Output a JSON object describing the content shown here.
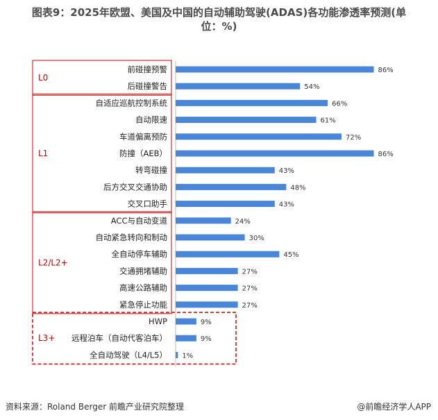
{
  "title_line1": "图表9：2025年欧盟、美国及中国的自动辅助驾驶(ADAS)各功能渗透率预测(单",
  "title_line2": "位：%)",
  "source": "资料来源：Roland Berger 前瞻产业研究院整理",
  "credit": "@前瞻经济学人APP",
  "colors": {
    "bar": "#4a86d8",
    "group_box": "#cc0000"
  },
  "chart_data": {
    "type": "bar",
    "orientation": "horizontal",
    "categories": [
      "前碰撞预警",
      "后碰撞警告",
      "自适应巡航控制系统",
      "自动限速",
      "车道偏离预防",
      "防撞（AEB）",
      "转弯碰撞",
      "后方交叉交通协助",
      "交叉口助手",
      "ACC与自动变道",
      "自动紧急转向和制动",
      "全自动停车辅助",
      "交通拥堵辅助",
      "高速公路辅助",
      "紧急停止功能",
      "HWP",
      "远程泊车（自动代客泊车）",
      "全自动驾驶（L4/L5）"
    ],
    "values": [
      86,
      54,
      66,
      61,
      72,
      86,
      43,
      48,
      43,
      24,
      30,
      45,
      27,
      27,
      27,
      9,
      9,
      1
    ],
    "value_labels": [
      "86%",
      "54%",
      "66%",
      "61%",
      "72%",
      "86%",
      "43%",
      "48%",
      "43%",
      "24%",
      "30%",
      "45%",
      "27%",
      "27%",
      "27%",
      "9%",
      "9%",
      "1%"
    ],
    "groups": [
      {
        "name": "L0",
        "start": 0,
        "end": 1,
        "style": "solid"
      },
      {
        "name": "L1",
        "start": 2,
        "end": 8,
        "style": "solid"
      },
      {
        "name": "L2/L2+",
        "start": 9,
        "end": 14,
        "style": "solid"
      },
      {
        "name": "L3+",
        "start": 15,
        "end": 17,
        "style": "dashed"
      }
    ],
    "xlim": [
      0,
      100
    ],
    "grid": false,
    "legend": "none"
  }
}
